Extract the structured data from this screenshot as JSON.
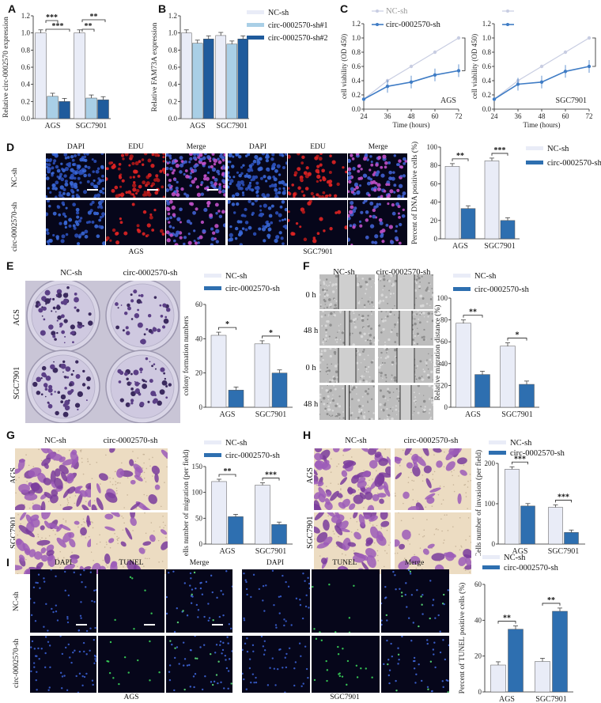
{
  "panels": {
    "A": {
      "label": "A"
    },
    "B": {
      "label": "B"
    },
    "C": {
      "label": "C"
    },
    "D": {
      "label": "D"
    },
    "E": {
      "label": "E"
    },
    "F": {
      "label": "F"
    },
    "G": {
      "label": "G"
    },
    "H": {
      "label": "H"
    },
    "I": {
      "label": "I"
    }
  },
  "legend": {
    "nc": "NC-sh",
    "sh": "circ-0002570-sh",
    "sh1": "circ-0002570-sh#1",
    "sh2": "circ-0002570-sh#2"
  },
  "colors": {
    "nc": "#e9ecf7",
    "sh1": "#a9cfe6",
    "sh": "#2e6fb0",
    "sh2": "#1f5b9c",
    "line_nc": "#c8cde2",
    "line_sh": "#3f7cc5"
  },
  "imaging": {
    "d_titles": [
      "DAPI",
      "EDU",
      "Merge",
      "DAPI",
      "EDU",
      "Merge"
    ],
    "d_rows": [
      "NC-sh",
      "circ-0002570-sh"
    ],
    "d_groups": [
      "AGS",
      "SGC7901"
    ],
    "e_cols": [
      "NC-sh",
      "circ-0002570-sh"
    ],
    "e_rows": [
      "AGS",
      "SGC7901"
    ],
    "f_cols": [
      "NC-sh",
      "circ-0002570-sh"
    ],
    "f_rows": [
      "0 h",
      "48 h",
      "0 h",
      "48 h"
    ],
    "g_cols": [
      "NC-sh",
      "circ-0002570-sh"
    ],
    "g_rows": [
      "AGS",
      "SGC7901"
    ],
    "h_cols": [
      "NC-sh",
      "circ-0002570-sh"
    ],
    "h_rows": [
      "AGS",
      "SGC7901"
    ],
    "i_titles": [
      "DAPI",
      "TUNEL",
      "Merge",
      "DAPI",
      "TUNEL",
      "Merge"
    ],
    "i_rows": [
      "NC-sh",
      "circ-0002570-sh"
    ],
    "i_groups": [
      "AGS",
      "SGC7901"
    ]
  },
  "chart_data": [
    {
      "id": "A",
      "type": "bar",
      "ylabel": "Relative circ-0002570 expression",
      "categories": [
        "AGS",
        "SGC7901"
      ],
      "series": [
        {
          "name": "NC-sh",
          "values": [
            1.0,
            1.0
          ]
        },
        {
          "name": "circ-0002570-sh#1",
          "values": [
            0.26,
            0.24
          ]
        },
        {
          "name": "circ-0002570-sh#2",
          "values": [
            0.2,
            0.22
          ]
        }
      ],
      "ylim": [
        0,
        1.2
      ],
      "yticks": [
        "0.0",
        "0.2",
        "0.4",
        "0.6",
        "0.8",
        "1.0",
        "1.2"
      ],
      "significance": [
        "***",
        "***",
        "**",
        "**"
      ]
    },
    {
      "id": "B",
      "type": "bar",
      "ylabel": "Relative FAM73A expression",
      "categories": [
        "AGS",
        "SGC7901"
      ],
      "series": [
        {
          "name": "NC-sh",
          "values": [
            1.0,
            0.97
          ]
        },
        {
          "name": "circ-0002570-sh#1",
          "values": [
            0.88,
            0.87
          ]
        },
        {
          "name": "circ-0002570-sh#2",
          "values": [
            0.93,
            0.93
          ]
        }
      ],
      "ylim": [
        0,
        1.2
      ],
      "yticks": [
        "0.0",
        "0.2",
        "0.4",
        "0.6",
        "0.8",
        "1.0",
        "1.2"
      ]
    },
    {
      "id": "C-AGS",
      "type": "line",
      "title": "AGS",
      "ylabel": "cell viability (OD 450)",
      "xlabel": "Time (hours)",
      "x": [
        24,
        36,
        48,
        60,
        72
      ],
      "xticks": [
        "24",
        "36",
        "48",
        "60",
        "72"
      ],
      "series": [
        {
          "name": "NC-sh",
          "values": [
            0.14,
            0.4,
            0.6,
            0.8,
            1.0
          ]
        },
        {
          "name": "circ-0002570-sh",
          "values": [
            0.14,
            0.32,
            0.38,
            0.48,
            0.54
          ]
        }
      ],
      "ylim": [
        0,
        1.2
      ],
      "yticks": [
        "0.0",
        "0.2",
        "0.4",
        "0.6",
        "0.8",
        "1.0",
        "1.2"
      ],
      "significance": [
        "***"
      ]
    },
    {
      "id": "C-SGC7901",
      "type": "line",
      "title": "SGC7901",
      "ylabel": "cell viability (OD 450)",
      "xlabel": "Time (hours)",
      "x": [
        24,
        36,
        48,
        60,
        72
      ],
      "xticks": [
        "24",
        "36",
        "48",
        "60",
        "72"
      ],
      "series": [
        {
          "name": "NC-sh",
          "values": [
            0.14,
            0.4,
            0.6,
            0.8,
            1.0
          ]
        },
        {
          "name": "circ-0002570-sh",
          "values": [
            0.14,
            0.35,
            0.38,
            0.53,
            0.6
          ]
        }
      ],
      "ylim": [
        0,
        1.2
      ],
      "yticks": [
        "0.0",
        "0.2",
        "0.4",
        "0.6",
        "0.8",
        "1.0",
        "1.2"
      ],
      "significance": [
        "***"
      ]
    },
    {
      "id": "D",
      "type": "bar",
      "ylabel": "Percent of DNA positive cells (%)",
      "categories": [
        "AGS",
        "SGC7901"
      ],
      "series": [
        {
          "name": "NC-sh",
          "values": [
            79,
            85
          ]
        },
        {
          "name": "circ-0002570-sh",
          "values": [
            33,
            20
          ]
        }
      ],
      "ylim": [
        0,
        100
      ],
      "yticks": [
        "0",
        "20",
        "40",
        "60",
        "80",
        "100"
      ],
      "significance": [
        "**",
        "***"
      ]
    },
    {
      "id": "E",
      "type": "bar",
      "ylabel": "colony formation numbers",
      "categories": [
        "AGS",
        "SGC7901"
      ],
      "series": [
        {
          "name": "NC-sh",
          "values": [
            42,
            37
          ]
        },
        {
          "name": "circ-0002570-sh",
          "values": [
            10,
            20
          ]
        }
      ],
      "ylim": [
        0,
        60
      ],
      "yticks": [
        "0",
        "20",
        "40",
        "60"
      ],
      "significance": [
        "*",
        "*"
      ]
    },
    {
      "id": "F",
      "type": "bar",
      "ylabel": "Relative migration distance (%)",
      "categories": [
        "AGS",
        "SGC7901"
      ],
      "series": [
        {
          "name": "NC-sh",
          "values": [
            77,
            56
          ]
        },
        {
          "name": "circ-0002570-sh",
          "values": [
            30,
            21
          ]
        }
      ],
      "ylim": [
        0,
        100
      ],
      "yticks": [
        "0",
        "20",
        "40",
        "60",
        "80",
        "100"
      ],
      "significance": [
        "**",
        "*"
      ]
    },
    {
      "id": "G",
      "type": "bar",
      "ylabel": "Cells number of migration (per field)",
      "categories": [
        "AGS",
        "SGC7901"
      ],
      "series": [
        {
          "name": "NC-sh",
          "values": [
            121,
            114
          ]
        },
        {
          "name": "circ-0002570-sh",
          "values": [
            53,
            38
          ]
        }
      ],
      "ylim": [
        0,
        150
      ],
      "yticks": [
        "0",
        "50",
        "100",
        "150"
      ],
      "significance": [
        "**",
        "***"
      ]
    },
    {
      "id": "H",
      "type": "bar",
      "ylabel": "Cells number of invasion (per field)",
      "categories": [
        "AGS",
        "SGC7901"
      ],
      "series": [
        {
          "name": "NC-sh",
          "values": [
            232,
            114
          ]
        },
        {
          "name": "circ-0002570-sh",
          "values": [
            118,
            36
          ]
        }
      ],
      "ylim": [
        0,
        250
      ],
      "yticks": [
        "0",
        "100",
        "200"
      ],
      "significance": [
        "***",
        "***"
      ]
    },
    {
      "id": "I",
      "type": "bar",
      "ylabel": "Percent of TUNEL positive cells (%)",
      "categories": [
        "AGS",
        "SGC7901"
      ],
      "series": [
        {
          "name": "NC-sh",
          "values": [
            15,
            17
          ]
        },
        {
          "name": "circ-0002570-sh",
          "values": [
            35,
            45
          ]
        }
      ],
      "ylim": [
        0,
        60
      ],
      "yticks": [
        "0",
        "20",
        "40",
        "60"
      ],
      "significance": [
        "**",
        "**"
      ]
    }
  ]
}
